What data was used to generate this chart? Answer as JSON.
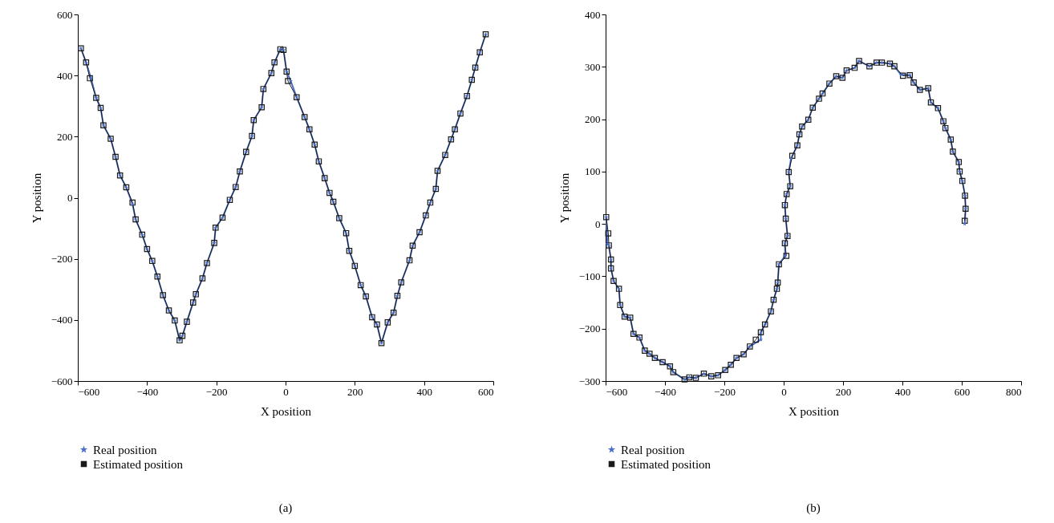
{
  "chart_data": [
    {
      "type": "line",
      "xlabel": "X position",
      "ylabel": "Y position",
      "xlim": [
        -600,
        600
      ],
      "ylim": [
        -600,
        600
      ],
      "xticks": [
        -600,
        -400,
        -200,
        0,
        200,
        400,
        600
      ],
      "yticks": [
        -600,
        -400,
        -200,
        0,
        200,
        400,
        600
      ],
      "grid": false,
      "legend": "bottom",
      "annotations": [
        "(a)"
      ],
      "series": [
        {
          "name": "Real position",
          "color": "#4a6fc7",
          "marker": "star",
          "x": [
            -591,
            -576,
            -562,
            -547,
            -534,
            -526,
            -505,
            -491,
            -478,
            -460,
            -442,
            -433,
            -414,
            -400,
            -385,
            -370,
            -354,
            -337,
            -320,
            -306,
            -298,
            -285,
            -267,
            -259,
            -240,
            -227,
            -206,
            -202,
            -182,
            -161,
            -144,
            -132,
            -114,
            -97,
            -92,
            -69,
            -64,
            -41,
            -32,
            -15,
            -6,
            3,
            15,
            32,
            55,
            69,
            84,
            96,
            113,
            127,
            138,
            155,
            175,
            184,
            200,
            217,
            232,
            250,
            264,
            277,
            295,
            312,
            323,
            334,
            358,
            367,
            387,
            405,
            418,
            434,
            439,
            461,
            478,
            489,
            505,
            524,
            538,
            548,
            561,
            578
          ],
          "values": [
            489,
            443,
            391,
            327,
            294,
            237,
            193,
            134,
            73,
            34,
            -21,
            -71,
            -121,
            -168,
            -207,
            -258,
            -319,
            -369,
            -402,
            -467,
            -452,
            -406,
            -343,
            -316,
            -264,
            -214,
            -148,
            -98,
            -65,
            -7,
            35,
            86,
            150,
            202,
            254,
            296,
            356,
            408,
            443,
            486,
            484,
            413,
            382,
            329,
            264,
            224,
            174,
            119,
            64,
            16,
            -13,
            -67,
            -116,
            -174,
            -223,
            -286,
            -323,
            -391,
            -415,
            -476,
            -408,
            -376,
            -321,
            -277,
            -205,
            -157,
            -113,
            -58,
            -16,
            29,
            88,
            140,
            191,
            224,
            276,
            333,
            386,
            426,
            476,
            535
          ]
        },
        {
          "name": "Estimated position",
          "color": "#1a1a1a",
          "marker": "square",
          "x": [
            -591,
            -576,
            -565,
            -547,
            -534,
            -526,
            -505,
            -491,
            -478,
            -460,
            -442,
            -433,
            -414,
            -400,
            -385,
            -370,
            -354,
            -337,
            -320,
            -306,
            -298,
            -285,
            -267,
            -259,
            -240,
            -227,
            -206,
            -202,
            -182,
            -161,
            -144,
            -132,
            -114,
            -97,
            -92,
            -69,
            -64,
            -41,
            -32,
            -15,
            -6,
            3,
            7,
            32,
            55,
            69,
            84,
            96,
            113,
            127,
            138,
            155,
            175,
            184,
            200,
            217,
            232,
            250,
            264,
            277,
            295,
            312,
            323,
            334,
            358,
            367,
            387,
            405,
            418,
            434,
            439,
            461,
            478,
            489,
            505,
            524,
            538,
            548,
            561,
            578
          ],
          "values": [
            489,
            443,
            391,
            327,
            294,
            237,
            193,
            134,
            73,
            34,
            -16,
            -71,
            -121,
            -168,
            -207,
            -258,
            -319,
            -369,
            -402,
            -467,
            -452,
            -406,
            -343,
            -316,
            -264,
            -214,
            -148,
            -98,
            -65,
            -7,
            35,
            86,
            150,
            202,
            254,
            296,
            356,
            408,
            443,
            486,
            484,
            413,
            382,
            329,
            264,
            224,
            174,
            119,
            64,
            16,
            -13,
            -67,
            -116,
            -174,
            -223,
            -286,
            -323,
            -391,
            -415,
            -476,
            -408,
            -376,
            -321,
            -277,
            -205,
            -157,
            -113,
            -58,
            -16,
            29,
            88,
            140,
            191,
            224,
            276,
            333,
            386,
            426,
            476,
            535
          ]
        }
      ]
    },
    {
      "type": "line",
      "xlabel": "X position",
      "ylabel": "Y position",
      "xlim": [
        -600,
        800
      ],
      "ylim": [
        -300,
        400
      ],
      "xticks": [
        -600,
        -400,
        -200,
        0,
        200,
        400,
        600,
        800
      ],
      "yticks": [
        -300,
        -200,
        -100,
        0,
        100,
        200,
        300,
        400
      ],
      "grid": false,
      "legend": "bottom",
      "annotations": [
        "(b)"
      ],
      "series": [
        {
          "name": "Real position",
          "color": "#4a6fc7",
          "marker": "star",
          "x": [
            -598,
            -594,
            -589,
            -582,
            -582,
            -573,
            -555,
            -551,
            -536,
            -517,
            -506,
            -486,
            -468,
            -452,
            -434,
            -408,
            -383,
            -372,
            -334,
            -318,
            -296,
            -269,
            -244,
            -221,
            -197,
            -178,
            -159,
            -135,
            -114,
            -77,
            -77,
            -63,
            -43,
            -34,
            -23,
            -20,
            -16,
            5,
            4,
            13,
            7,
            4,
            10,
            22,
            17,
            25,
            46,
            53,
            62,
            83,
            98,
            119,
            131,
            154,
            177,
            198,
            212,
            239,
            254,
            289,
            313,
            331,
            358,
            373,
            395,
            425,
            438,
            459,
            487,
            496,
            520,
            538,
            545,
            563,
            570,
            590,
            593,
            602,
            611,
            613,
            610
          ],
          "values": [
            13,
            -38,
            -41,
            -68,
            -85,
            -109,
            -124,
            -155,
            -177,
            -179,
            -210,
            -217,
            -242,
            -248,
            -256,
            -264,
            -272,
            -283,
            -297,
            -293,
            -294,
            -286,
            -291,
            -289,
            -279,
            -269,
            -256,
            -249,
            -234,
            -221,
            -207,
            -192,
            -167,
            -145,
            -124,
            -112,
            -77,
            -61,
            -37,
            -23,
            10,
            36,
            57,
            72,
            99,
            125,
            150,
            171,
            186,
            199,
            222,
            239,
            249,
            268,
            282,
            279,
            293,
            298,
            311,
            301,
            308,
            308,
            306,
            301,
            285,
            284,
            270,
            256,
            259,
            232,
            221,
            196,
            183,
            161,
            138,
            118,
            100,
            82,
            54,
            29,
            0
          ]
        },
        {
          "name": "Estimated position",
          "color": "#1a1a1a",
          "marker": "square",
          "x": [
            -598,
            -591,
            -589,
            -582,
            -582,
            -573,
            -555,
            -551,
            -536,
            -517,
            -506,
            -486,
            -468,
            -452,
            -434,
            -408,
            -383,
            -372,
            -334,
            -318,
            -296,
            -269,
            -244,
            -221,
            -197,
            -178,
            -159,
            -135,
            -114,
            -94,
            -77,
            -63,
            -43,
            -34,
            -23,
            -20,
            -16,
            9,
            4,
            13,
            7,
            4,
            10,
            22,
            17,
            29,
            46,
            53,
            62,
            83,
            98,
            119,
            131,
            154,
            177,
            198,
            212,
            239,
            254,
            289,
            313,
            331,
            358,
            373,
            402,
            425,
            438,
            459,
            487,
            496,
            520,
            538,
            545,
            563,
            570,
            590,
            593,
            602,
            611,
            613,
            610
          ],
          "values": [
            13,
            -18,
            -41,
            -68,
            -85,
            -109,
            -124,
            -155,
            -177,
            -179,
            -210,
            -217,
            -242,
            -248,
            -256,
            -264,
            -272,
            -283,
            -297,
            -293,
            -294,
            -286,
            -291,
            -289,
            -279,
            -269,
            -256,
            -249,
            -234,
            -221,
            -207,
            -192,
            -167,
            -145,
            -124,
            -112,
            -77,
            -61,
            -37,
            -23,
            10,
            36,
            57,
            72,
            99,
            130,
            150,
            171,
            186,
            199,
            222,
            239,
            249,
            268,
            282,
            279,
            293,
            298,
            311,
            301,
            308,
            308,
            306,
            301,
            283,
            284,
            270,
            256,
            259,
            232,
            221,
            196,
            183,
            161,
            138,
            118,
            100,
            82,
            54,
            29,
            6
          ]
        }
      ]
    }
  ]
}
